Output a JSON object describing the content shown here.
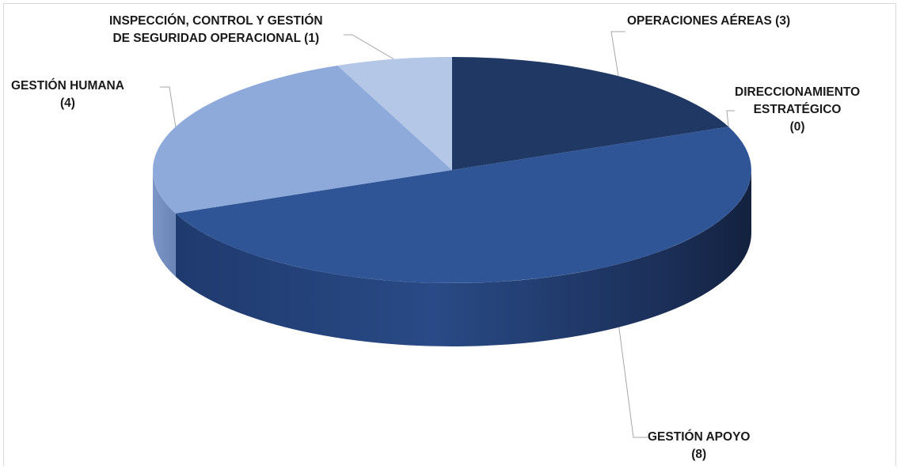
{
  "chart_data": {
    "type": "pie",
    "style": "3d",
    "categories": [
      "OPERACIONES AÉREAS",
      "DIRECCIONAMIENTO ESTRATÉGICO",
      "GESTIÓN APOYO",
      "GESTIÓN HUMANA",
      "INSPECCIÓN, CONTROL Y GESTIÓN DE SEGURIDAD OPERACIONAL"
    ],
    "values": [
      3,
      0,
      8,
      4,
      1
    ],
    "colors": [
      "#1f3864",
      "#2e4a8a",
      "#2f5597",
      "#8eaadb",
      "#b4c7e7"
    ],
    "legend": "none",
    "data_labels": [
      {
        "lines": [
          "OPERACIONES AÉREAS (3)"
        ]
      },
      {
        "lines": [
          "DIRECCIONAMIENTO",
          "ESTRATÉGICO",
          "(0)"
        ]
      },
      {
        "lines": [
          "GESTIÓN APOYO",
          "(8)"
        ]
      },
      {
        "lines": [
          "GESTIÓN HUMANA",
          "(4)"
        ]
      },
      {
        "lines": [
          "INSPECCIÓN, CONTROL Y GESTIÓN",
          "DE SEGURIDAD OPERACIONAL (1)"
        ]
      }
    ]
  }
}
